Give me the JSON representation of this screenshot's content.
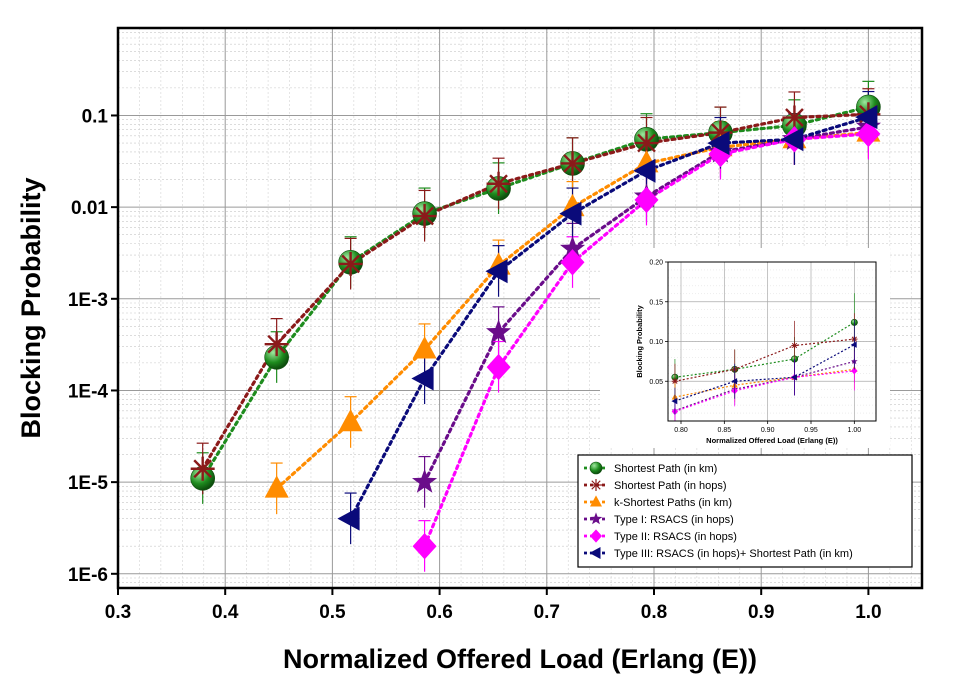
{
  "chart_data": [
    {
      "id": "main",
      "type": "line",
      "xlabel": "Normalized Offered Load (Erlang (E))",
      "ylabel": "Blocking Probability",
      "yscale": "log",
      "xlim": [
        0.3,
        1.05
      ],
      "ylim": [
        7e-07,
        0.9
      ],
      "xticks": [
        0.3,
        0.4,
        0.5,
        0.6,
        0.7,
        0.8,
        0.9,
        1.0
      ],
      "xtick_labels": [
        "0.3",
        "0.4",
        "0.5",
        "0.6",
        "0.7",
        "0.8",
        "0.9",
        "1.0"
      ],
      "yticks": [
        1e-06,
        1e-05,
        0.0001,
        0.001,
        0.01,
        0.1
      ],
      "ytick_labels": [
        "1E-6",
        "1E-5",
        "1E-4",
        "1E-3",
        "0.01",
        "0.1"
      ],
      "grid": true,
      "legend_position": "bottom-right",
      "series": [
        {
          "name": "Shortest Path (in km)",
          "color": "#1e8c1e",
          "marker": "circle",
          "x": [
            0.379,
            0.448,
            0.517,
            0.586,
            0.655,
            0.724,
            0.793,
            0.862,
            0.931,
            1.0
          ],
          "y": [
            1.1e-05,
            0.00023,
            0.0025,
            0.0085,
            0.016,
            0.03,
            0.055,
            0.065,
            0.078,
            0.124
          ]
        },
        {
          "name": "Shortest Path (in hops)",
          "color": "#8b1a1a",
          "marker": "asterisk",
          "x": [
            0.379,
            0.448,
            0.517,
            0.586,
            0.655,
            0.724,
            0.793,
            0.862,
            0.931,
            1.0
          ],
          "y": [
            1.4e-05,
            0.00032,
            0.0024,
            0.008,
            0.018,
            0.03,
            0.05,
            0.065,
            0.095,
            0.103
          ]
        },
        {
          "name": "k-Shortest Paths (in km)",
          "color": "#ff8c00",
          "marker": "triangle-up",
          "x": [
            0.448,
            0.517,
            0.586,
            0.655,
            0.724,
            0.793,
            0.862,
            0.931,
            1.0
          ],
          "y": [
            8.5e-06,
            4.5e-05,
            0.00028,
            0.0023,
            0.01,
            0.03,
            0.045,
            0.055,
            0.065
          ]
        },
        {
          "name": "Type I: RSACS (in hops)",
          "color": "#6a0d8a",
          "marker": "star",
          "x": [
            0.586,
            0.655,
            0.724,
            0.793,
            0.862,
            0.931,
            1.0
          ],
          "y": [
            1e-05,
            0.00043,
            0.0035,
            0.013,
            0.04,
            0.055,
            0.075
          ]
        },
        {
          "name": "Type II: RSACS (in hops)",
          "color": "#ff00ff",
          "marker": "diamond",
          "x": [
            0.586,
            0.655,
            0.724,
            0.793,
            0.862,
            0.931,
            1.0
          ],
          "y": [
            2e-06,
            0.00018,
            0.0025,
            0.012,
            0.038,
            0.055,
            0.063
          ]
        },
        {
          "name": "Type III: RSACS (in hops)+ Shortest Path (in km)",
          "color": "#0a0a7a",
          "marker": "triangle-left",
          "x": [
            0.517,
            0.586,
            0.655,
            0.724,
            0.793,
            0.862,
            0.931,
            1.0
          ],
          "y": [
            4e-06,
            0.000135,
            0.002,
            0.0085,
            0.025,
            0.05,
            0.055,
            0.096
          ]
        }
      ]
    },
    {
      "id": "inset",
      "type": "line",
      "xlabel": "Normalized Offered Load (Erlang (E))",
      "ylabel": "Blocking Probability",
      "xlim": [
        0.785,
        1.025
      ],
      "ylim": [
        0.0,
        0.2
      ],
      "xticks": [
        0.8,
        0.85,
        0.9,
        0.95,
        1.0
      ],
      "xtick_labels": [
        "0.80",
        "0.85",
        "0.90",
        "0.95",
        "1.00"
      ],
      "yticks": [
        0.05,
        0.1,
        0.15,
        0.2
      ],
      "ytick_labels": [
        "0.05",
        "0.10",
        "0.15",
        "0.20"
      ],
      "grid": true,
      "series": [
        {
          "name": "Shortest Path (in km)",
          "color": "#1e8c1e",
          "marker": "circle",
          "x": [
            0.793,
            0.862,
            0.931,
            1.0
          ],
          "y": [
            0.055,
            0.065,
            0.078,
            0.124
          ]
        },
        {
          "name": "Shortest Path (in hops)",
          "color": "#8b1a1a",
          "marker": "asterisk",
          "x": [
            0.793,
            0.862,
            0.931,
            1.0
          ],
          "y": [
            0.05,
            0.065,
            0.095,
            0.103
          ]
        },
        {
          "name": "k-Shortest Paths (in km)",
          "color": "#ff8c00",
          "marker": "triangle-up",
          "x": [
            0.793,
            0.862,
            0.931,
            1.0
          ],
          "y": [
            0.03,
            0.045,
            0.055,
            0.065
          ]
        },
        {
          "name": "Type I: RSACS (in hops)",
          "color": "#6a0d8a",
          "marker": "star",
          "x": [
            0.793,
            0.862,
            0.931,
            1.0
          ],
          "y": [
            0.013,
            0.04,
            0.055,
            0.075
          ]
        },
        {
          "name": "Type II: RSACS (in hops)",
          "color": "#ff00ff",
          "marker": "diamond",
          "x": [
            0.793,
            0.862,
            0.931,
            1.0
          ],
          "y": [
            0.012,
            0.038,
            0.055,
            0.063
          ]
        },
        {
          "name": "Type III: RSACS (in hops)+ Shortest Path (in km)",
          "color": "#0a0a7a",
          "marker": "triangle-left",
          "x": [
            0.793,
            0.862,
            0.931,
            1.0
          ],
          "y": [
            0.025,
            0.05,
            0.055,
            0.096
          ]
        }
      ]
    }
  ]
}
